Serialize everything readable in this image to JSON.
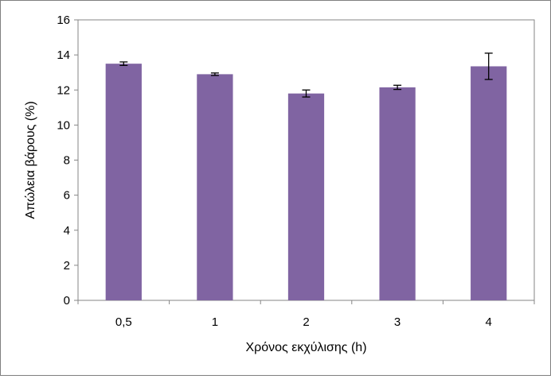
{
  "chart_data": {
    "type": "bar",
    "categories": [
      "0,5",
      "1",
      "2",
      "3",
      "4"
    ],
    "values": [
      13.5,
      12.9,
      11.8,
      12.15,
      13.35
    ],
    "error": [
      0.1,
      0.07,
      0.2,
      0.12,
      0.75
    ],
    "title": "",
    "xlabel": "Χρόνος εκχύλισης (h)",
    "ylabel": "Απώλεια βάρους (%)",
    "ylim": [
      0,
      16
    ],
    "yticks": [
      0,
      2,
      4,
      6,
      8,
      10,
      12,
      14,
      16
    ],
    "ytick_labels": [
      "0",
      "2",
      "4",
      "6",
      "8",
      "10",
      "12",
      "14",
      "16"
    ],
    "grid": false,
    "legend": "none",
    "bar_color": "#8064A2"
  }
}
